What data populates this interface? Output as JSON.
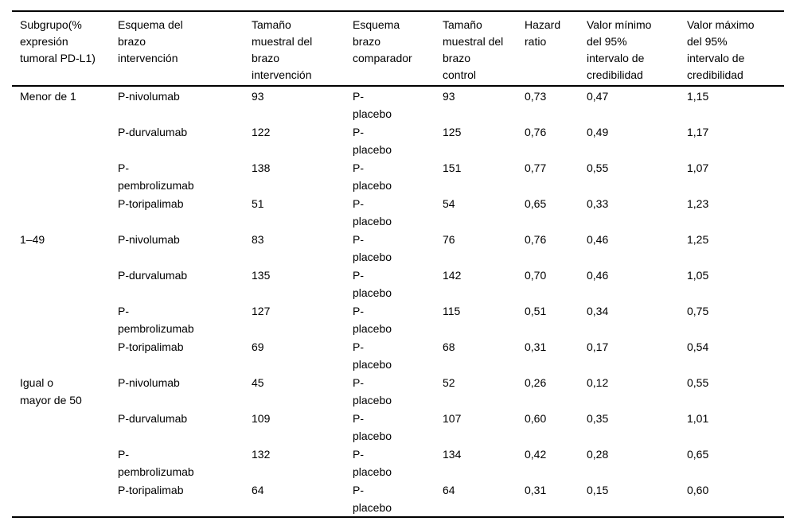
{
  "table": {
    "columns": [
      {
        "id": "subgroup",
        "label": [
          "Subgrupo(%",
          "expresión",
          "tumoral PD-L1)"
        ]
      },
      {
        "id": "intervention-scheme",
        "label": [
          "Esquema del",
          "brazo",
          "intervención"
        ]
      },
      {
        "id": "intervention-n",
        "label": [
          "Tamaño",
          "muestral del",
          "brazo",
          "intervención"
        ]
      },
      {
        "id": "comparator-scheme",
        "label": [
          "Esquema",
          "brazo",
          "comparador"
        ]
      },
      {
        "id": "control-n",
        "label": [
          "Tamaño",
          "muestral del",
          "brazo",
          "control"
        ]
      },
      {
        "id": "hazard-ratio",
        "label": [
          "Hazard",
          "ratio"
        ]
      },
      {
        "id": "ci-min",
        "label": [
          "Valor mínimo",
          "del 95%",
          "intervalo de",
          "credibilidad"
        ]
      },
      {
        "id": "ci-max",
        "label": [
          "Valor máximo",
          "del 95%",
          "intervalo de",
          "credibilidad"
        ]
      }
    ],
    "rows": [
      [
        "Menor de 1",
        "P-nivolumab",
        "93",
        [
          "P-",
          "placebo"
        ],
        "93",
        "0,73",
        "0,47",
        "1,15"
      ],
      [
        "",
        "P-durvalumab",
        "122",
        [
          "P-",
          "placebo"
        ],
        "125",
        "0,76",
        "0,49",
        "1,17"
      ],
      [
        "",
        [
          "P-",
          "pembrolizumab"
        ],
        "138",
        [
          "P-",
          "placebo"
        ],
        "151",
        "0,77",
        "0,55",
        "1,07"
      ],
      [
        "",
        "P-toripalimab",
        "51",
        [
          "P-",
          "placebo"
        ],
        "54",
        "0,65",
        "0,33",
        "1,23"
      ],
      [
        "1–49",
        "P-nivolumab",
        "83",
        [
          "P-",
          "placebo"
        ],
        "76",
        "0,76",
        "0,46",
        "1,25"
      ],
      [
        "",
        "P-durvalumab",
        "135",
        [
          "P-",
          "placebo"
        ],
        "142",
        "0,70",
        "0,46",
        "1,05"
      ],
      [
        "",
        [
          "P-",
          "pembrolizumab"
        ],
        "127",
        [
          "P-",
          "placebo"
        ],
        "115",
        "0,51",
        "0,34",
        "0,75"
      ],
      [
        "",
        "P-toripalimab",
        "69",
        [
          "P-",
          "placebo"
        ],
        "68",
        "0,31",
        "0,17",
        "0,54"
      ],
      [
        [
          "Igual o",
          "mayor de 50"
        ],
        "P-nivolumab",
        "45",
        [
          "P-",
          "placebo"
        ],
        "52",
        "0,26",
        "0,12",
        "0,55"
      ],
      [
        "",
        "P-durvalumab",
        "109",
        [
          "P-",
          "placebo"
        ],
        "107",
        "0,60",
        "0,35",
        "1,01"
      ],
      [
        "",
        [
          "P-",
          "pembrolizumab"
        ],
        "132",
        [
          "P-",
          "placebo"
        ],
        "134",
        "0,42",
        "0,28",
        "0,65"
      ],
      [
        "",
        "P-toripalimab",
        "64",
        [
          "P-",
          "placebo"
        ],
        "64",
        "0,31",
        "0,15",
        "0,60"
      ]
    ]
  }
}
